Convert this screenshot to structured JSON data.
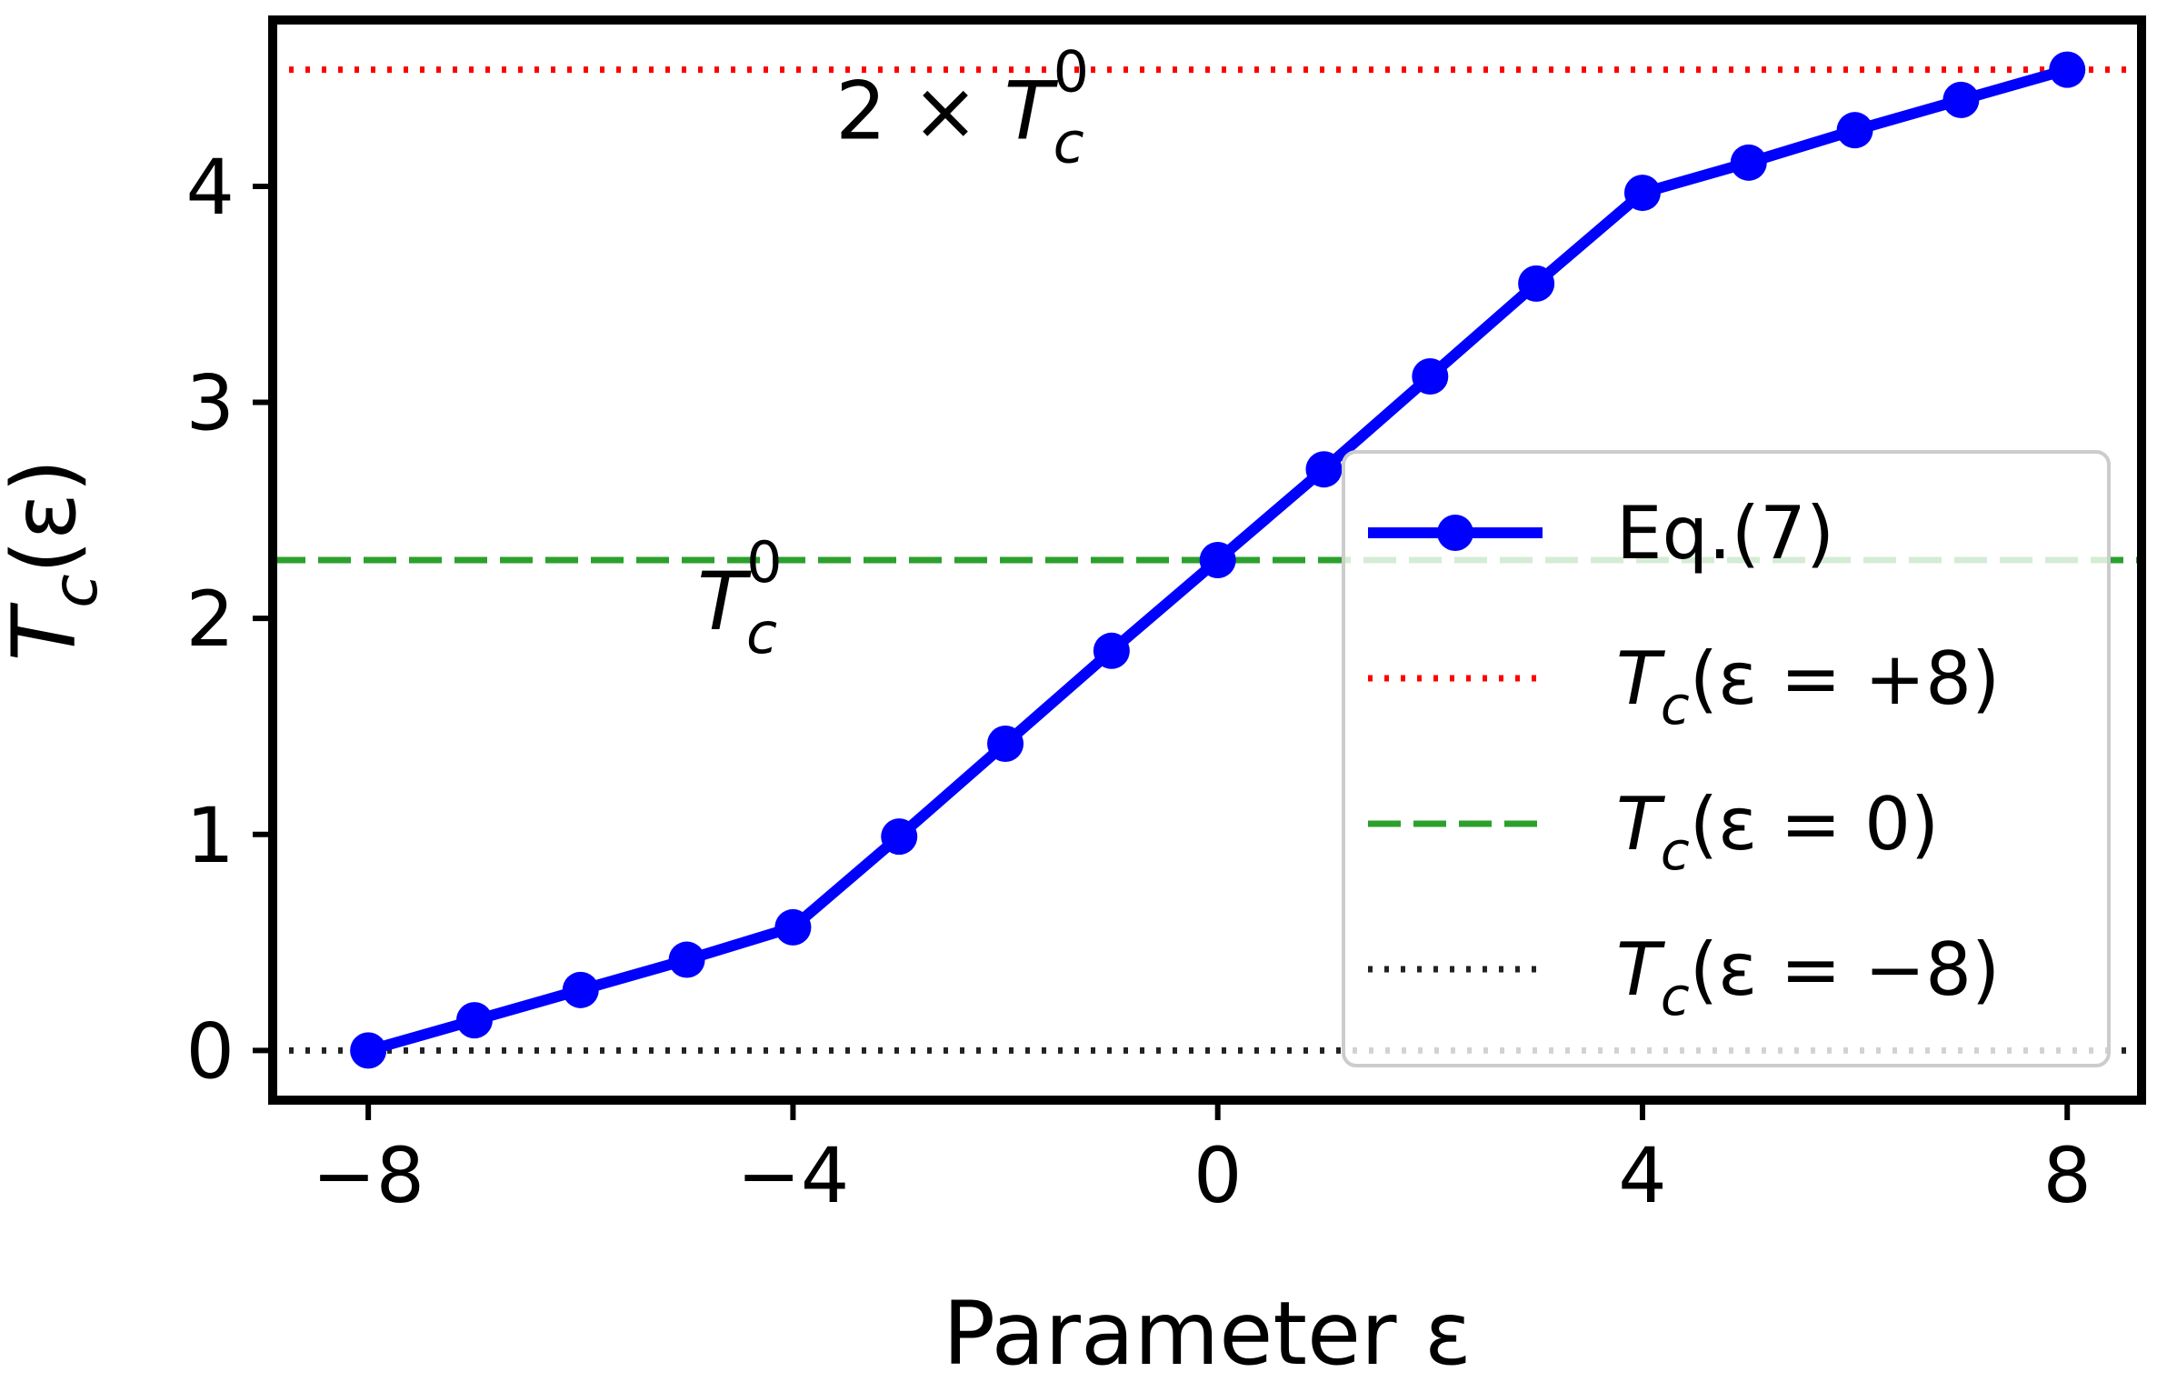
{
  "chart_data": {
    "type": "line",
    "xlabel": "Parameter ε",
    "ylabel": "T_c(ε)",
    "xlim": [
      -8.9,
      8.7
    ],
    "ylim": [
      -0.23,
      4.77
    ],
    "xticks": [
      -8,
      -4,
      0,
      4,
      8
    ],
    "xtick_labels": [
      "−8",
      "−4",
      "0",
      "4",
      "8"
    ],
    "yticks": [
      0,
      1,
      2,
      3,
      4
    ],
    "ytick_labels": [
      "0",
      "1",
      "2",
      "3",
      "4"
    ],
    "grid": false,
    "legend_placement": "lower-right",
    "series": [
      {
        "name": "Eq.(7)",
        "style": "solid-marker",
        "color": "#0000ff",
        "x": [
          -8,
          -7,
          -6,
          -5,
          -4,
          -3,
          -2,
          -1,
          0,
          1,
          2,
          3,
          4,
          5,
          6,
          7,
          8
        ],
        "y": [
          0.0,
          0.14,
          0.28,
          0.42,
          0.57,
          0.99,
          1.42,
          1.85,
          2.27,
          2.69,
          3.12,
          3.55,
          3.97,
          4.11,
          4.26,
          4.4,
          4.54
        ]
      }
    ],
    "reference_lines": [
      {
        "name_parts": [
          "T",
          "c",
          "(ε = +8)"
        ],
        "value": 4.54,
        "style": "dotted",
        "color": "#ff0000"
      },
      {
        "name_parts": [
          "T",
          "c",
          "(ε = 0)"
        ],
        "value": 2.27,
        "style": "dashed",
        "color": "#2ca02c"
      },
      {
        "name_parts": [
          "T",
          "c",
          "(ε = −8)"
        ],
        "value": 0.0,
        "style": "dotted",
        "color": "#222222"
      }
    ],
    "annotations": [
      {
        "prefix": "2 × ",
        "base": "T",
        "sub": "c",
        "sup": "0",
        "x": -3.6,
        "y": 4.22
      },
      {
        "prefix": "",
        "base": "T",
        "sub": "c",
        "sup": "0",
        "x": -4.9,
        "y": 1.95
      }
    ],
    "ylabel_parts": {
      "base": "T",
      "sub": "c",
      "rest": "(ε)"
    },
    "xlabel_text": "Parameter ε"
  }
}
